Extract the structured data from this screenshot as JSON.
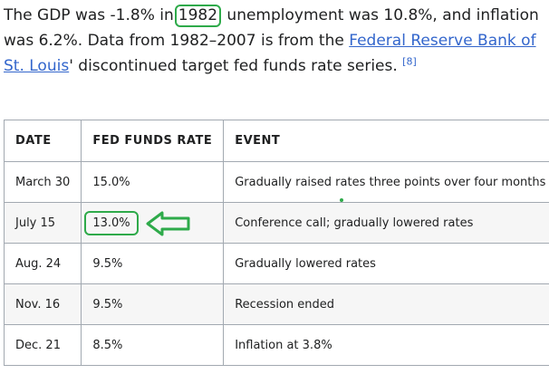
{
  "intro": {
    "part1": "The GDP was -1.8% in",
    "highlight_year": "1982",
    "part2": " unemployment was 10.8%, and inflation was 6.2%. Data from 1982–2007 is from the ",
    "link": "Federal Reserve Bank of St. Louis",
    "part3": "' discontinued target fed funds rate series.",
    "ref": "[8]"
  },
  "table": {
    "headers": {
      "date": "DATE",
      "rate": "FED FUNDS RATE",
      "event": "EVENT"
    },
    "rows": [
      {
        "date": "March 30",
        "rate": "15.0%",
        "event": "Gradually raised rates three points over four months"
      },
      {
        "date": "July 15",
        "rate": "13.0%",
        "event": "Conference call; gradually lowered rates"
      },
      {
        "date": "Aug. 24",
        "rate": "9.5%",
        "event": "Gradually lowered rates"
      },
      {
        "date": "Nov. 16",
        "rate": "9.5%",
        "event": "Recession ended"
      },
      {
        "date": "Dec. 21",
        "rate": "8.5%",
        "event": "Inflation at 3.8%"
      }
    ]
  },
  "annotation": {
    "color": "#2eaa4a",
    "arrow_icon": "left-arrow-icon"
  }
}
